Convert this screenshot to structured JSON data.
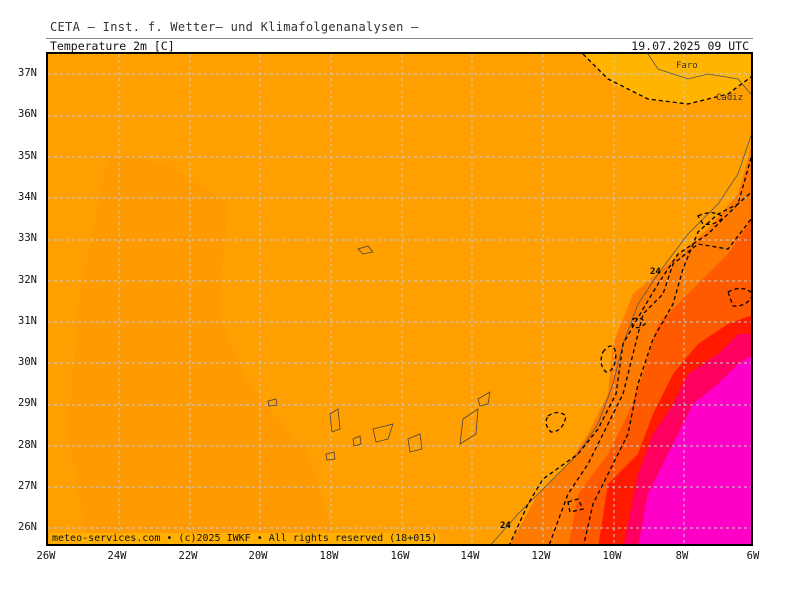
{
  "header": {
    "title": "CETA — Inst. f. Wetter— und Klimafolgenanalysen —",
    "variable": "Temperature_2m_[C]",
    "datetime": "19.07.2025 09 UTC"
  },
  "footer": {
    "credit": "meteo-services.com • (c)2025 IWKF • All rights reserved (18+015)"
  },
  "axes": {
    "lat_labels": [
      "37N",
      "36N",
      "35N",
      "34N",
      "33N",
      "32N",
      "31N",
      "30N",
      "29N",
      "28N",
      "27N",
      "26N"
    ],
    "lon_labels": [
      "26W",
      "24W",
      "22W",
      "20W",
      "18W",
      "16W",
      "14W",
      "12W",
      "10W",
      "8W",
      "6W"
    ]
  },
  "places": [
    "Faro",
    "Cadiz"
  ],
  "contour_labels": [
    "24",
    "24"
  ],
  "colors": {
    "base": "#ff9f00",
    "cooler": "#ff9400",
    "warm1": "#ff7a00",
    "warm2": "#ff5a00",
    "hot": "#ff1a00",
    "hotter": "#ff0060",
    "hottest": "#ff00c8",
    "light": "#ffb400"
  }
}
